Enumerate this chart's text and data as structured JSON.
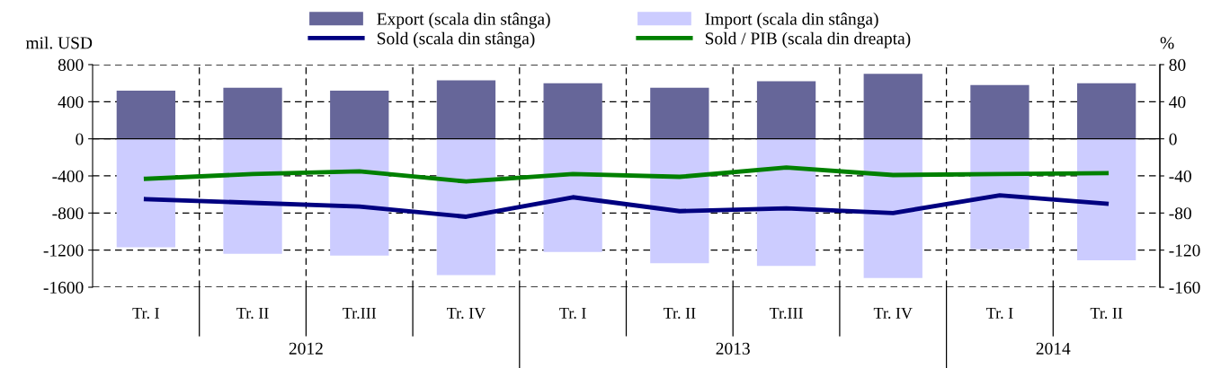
{
  "chart_data": {
    "type": "bar",
    "stacked": true,
    "categories": [
      "Tr. I",
      "Tr. II",
      "Tr.III",
      "Tr. IV",
      "Tr. I",
      "Tr. II",
      "Tr.III",
      "Tr. IV",
      "Tr. I",
      "Tr. II"
    ],
    "ylabel": "mil. USD",
    "y2label": "%",
    "ylim": [
      -1600,
      800
    ],
    "yticks": [
      -1600,
      -1200,
      -800,
      -400,
      0,
      400,
      800
    ],
    "y2lim": [
      -160,
      80
    ],
    "y2ticks": [
      -160,
      -120,
      -80,
      -40,
      0,
      40,
      80
    ],
    "grid": true,
    "legend": "top",
    "annotations": [
      "2012",
      "2013",
      "2014"
    ],
    "series": [
      {
        "name": "Export (scala din stânga)",
        "color": "#666699",
        "values": [
          520,
          550,
          520,
          630,
          600,
          550,
          620,
          700,
          580,
          600
        ]
      },
      {
        "name": "Import (scala din stânga)",
        "color": "#ccccff",
        "values": [
          -1170,
          -1240,
          -1260,
          -1470,
          -1220,
          -1340,
          -1370,
          -1500,
          -1190,
          -1310
        ]
      },
      {
        "name": "Sold (scala din stânga)",
        "type": "line",
        "color": "#000080",
        "values": [
          -650,
          -690,
          -730,
          -840,
          -630,
          -780,
          -750,
          -800,
          -610,
          -700
        ]
      },
      {
        "name": "Sold / PIB (scala din dreapta)",
        "type": "line",
        "axis": "y2",
        "color": "#008000",
        "values": [
          -43,
          -38,
          -35,
          -46,
          -38,
          -41,
          -31,
          -39,
          -38,
          -37
        ]
      }
    ]
  }
}
